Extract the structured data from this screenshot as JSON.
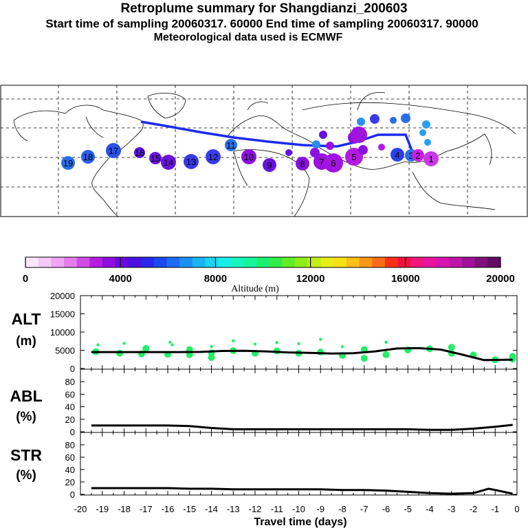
{
  "header": {
    "title": "Retroplume summary for Shangdianzi_200603",
    "line2": "Start time of sampling 20060317. 60000     End time of sampling 20060317. 90000",
    "line3": "Meteorological data used is ECMWF"
  },
  "colors": {
    "track": "#1a2af0",
    "line": "#000000",
    "points": "#22ee66"
  },
  "colorbar": {
    "tick_labels": [
      "0",
      "4000",
      "8000",
      "12000",
      "16000",
      "20000"
    ],
    "label": "Altitude (m)",
    "colors": [
      "#fde6fd",
      "#f6c8f8",
      "#eea6f4",
      "#e47cee",
      "#d24ae6",
      "#b51ee0",
      "#8e10e0",
      "#6a08e0",
      "#4a10e4",
      "#2828e8",
      "#1c48f0",
      "#1c6cf4",
      "#1a90f6",
      "#1ab4f6",
      "#18d4f4",
      "#18eee6",
      "#18f4c0",
      "#18f49a",
      "#18f070",
      "#30ee48",
      "#60ee28",
      "#90ee18",
      "#c0ee18",
      "#e6ee18",
      "#f8e018",
      "#fcbe18",
      "#fc9818",
      "#fc6c18",
      "#f83018",
      "#f01040",
      "#f0147c",
      "#e814a0",
      "#d814b0",
      "#c014a8",
      "#a0129a",
      "#80107c",
      "#640c62"
    ]
  },
  "map_labels": [
    {
      "t": "19"
    },
    {
      "t": "18"
    },
    {
      "t": "17"
    },
    {
      "t": "16"
    },
    {
      "t": "15"
    },
    {
      "t": "14"
    },
    {
      "t": "13"
    },
    {
      "t": "12"
    },
    {
      "t": "11"
    },
    {
      "t": "10"
    },
    {
      "t": "9"
    },
    {
      "t": "8"
    },
    {
      "t": "7"
    },
    {
      "t": "6"
    },
    {
      "t": "5"
    },
    {
      "t": "4"
    },
    {
      "t": "3"
    },
    {
      "t": "2"
    },
    {
      "t": "1"
    }
  ],
  "chart_data": [
    {
      "type": "line",
      "title": "ALT (m)",
      "ylabel": "ALT\n(m)",
      "ylim": [
        0,
        20000
      ],
      "yticks": [
        "20000",
        "15000",
        "10000",
        "5000",
        "0"
      ],
      "x": [
        -19.5,
        -18.5,
        -17.5,
        -16.5,
        -15.5,
        -14.5,
        -13.5,
        -12.5,
        -11.5,
        -10.5,
        -9.5,
        -8.5,
        -7.5,
        -6.5,
        -5.5,
        -4.5,
        -3.5,
        -2.5,
        -1.5,
        -0.5,
        -0.2
      ],
      "values": [
        4500,
        4500,
        4500,
        4500,
        4500,
        4550,
        4800,
        4850,
        4700,
        4400,
        4300,
        4100,
        4200,
        4700,
        5500,
        5600,
        5200,
        3800,
        2300,
        2400,
        2400
      ],
      "scatter": [
        {
          "x": -19.3,
          "y": 4600
        },
        {
          "x": -19.2,
          "y": 6500
        },
        {
          "x": -18.2,
          "y": 4200
        },
        {
          "x": -18.0,
          "y": 6900
        },
        {
          "x": -17.2,
          "y": 4000
        },
        {
          "x": -17.0,
          "y": 5500
        },
        {
          "x": -16.0,
          "y": 3900
        },
        {
          "x": -15.9,
          "y": 7200
        },
        {
          "x": -15.8,
          "y": 6500
        },
        {
          "x": -15.0,
          "y": 3800
        },
        {
          "x": -15.0,
          "y": 5200
        },
        {
          "x": -14.0,
          "y": 4300
        },
        {
          "x": -14.0,
          "y": 6000
        },
        {
          "x": -14.0,
          "y": 3000
        },
        {
          "x": -13.0,
          "y": 4900
        },
        {
          "x": -13.0,
          "y": 7600
        },
        {
          "x": -12.0,
          "y": 4200
        },
        {
          "x": -12.0,
          "y": 6700
        },
        {
          "x": -11.0,
          "y": 4800
        },
        {
          "x": -11.0,
          "y": 7100
        },
        {
          "x": -10.0,
          "y": 4200
        },
        {
          "x": -10.0,
          "y": 6800
        },
        {
          "x": -9.0,
          "y": 4500
        },
        {
          "x": -9.0,
          "y": 8000
        },
        {
          "x": -8.0,
          "y": 3600
        },
        {
          "x": -8.0,
          "y": 6000
        },
        {
          "x": -7.0,
          "y": 2800
        },
        {
          "x": -7.0,
          "y": 5200
        },
        {
          "x": -6.0,
          "y": 3800
        },
        {
          "x": -6.0,
          "y": 7200
        },
        {
          "x": -5.0,
          "y": 5100
        },
        {
          "x": -4.0,
          "y": 5400
        },
        {
          "x": -3.0,
          "y": 5800
        },
        {
          "x": -3.0,
          "y": 4200
        },
        {
          "x": -2.0,
          "y": 3700
        },
        {
          "x": -1.0,
          "y": 2400
        },
        {
          "x": -0.2,
          "y": 2600
        },
        {
          "x": -0.2,
          "y": 3300
        }
      ],
      "xlabel": "Travel time (days)"
    },
    {
      "type": "line",
      "title": "ABL (%)",
      "ylabel": "ABL\n(%)",
      "ylim": [
        0,
        100
      ],
      "yticks": [
        "80",
        "60",
        "40",
        "20",
        "0"
      ],
      "x": [
        -19.5,
        -18,
        -17,
        -16,
        -15,
        -14,
        -13,
        -12,
        -11,
        -10,
        -9,
        -8,
        -7,
        -6,
        -5,
        -4,
        -3,
        -2,
        -1,
        -0.2
      ],
      "values": [
        10,
        10,
        10,
        10,
        9,
        6,
        4,
        4,
        4,
        4,
        4,
        4,
        4,
        4,
        4,
        3,
        3,
        5,
        8,
        11
      ]
    },
    {
      "type": "line",
      "title": "STR (%)",
      "ylabel": "STR\n(%)",
      "ylim": [
        0,
        100
      ],
      "yticks": [
        "80",
        "60",
        "40",
        "20",
        "0"
      ],
      "x": [
        -19.5,
        -18,
        -17,
        -16,
        -15,
        -14,
        -13,
        -12,
        -11,
        -10,
        -9,
        -8,
        -7,
        -6,
        -5,
        -4,
        -3,
        -2,
        -1.3,
        -1,
        -0.2
      ],
      "values": [
        10,
        10,
        10,
        10,
        9,
        9,
        8,
        8,
        8,
        8,
        8,
        7,
        7,
        6,
        4,
        2,
        1,
        2,
        9,
        7,
        1
      ]
    }
  ],
  "x_axis": {
    "tick_labels": [
      "-20",
      "-19",
      "-18",
      "-17",
      "-16",
      "-15",
      "-14",
      "-13",
      "-12",
      "-11",
      "-10",
      "-9",
      "-8",
      "-7",
      "-6",
      "-5",
      "-4",
      "-3",
      "-2",
      "-1",
      "0"
    ],
    "label": "Travel time (days)"
  },
  "panel_labels": {
    "alt": [
      "ALT",
      "(m)"
    ],
    "abl": [
      "ABL",
      "(%)"
    ],
    "str": [
      "STR",
      "(%)"
    ]
  }
}
